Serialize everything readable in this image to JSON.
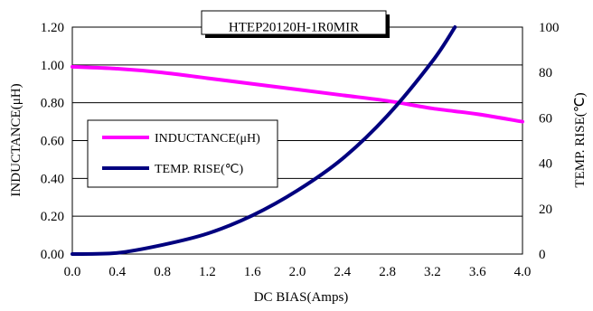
{
  "chart_data": {
    "type": "line",
    "title": "HTEP20120H-1R0MIR",
    "xlabel": "DC BIAS(Amps)",
    "ylabel": "INDUCTANCE(μH)",
    "y2label": "TEMP. RISE(℃)",
    "xlim": [
      0,
      4.0
    ],
    "ylim": [
      0,
      1.2
    ],
    "y2lim": [
      0,
      100
    ],
    "x_ticks": [
      "0.0",
      "0.4",
      "0.8",
      "1.2",
      "1.6",
      "2.0",
      "2.4",
      "2.8",
      "3.2",
      "3.6",
      "4.0"
    ],
    "y_ticks": [
      "0.00",
      "0.20",
      "0.40",
      "0.60",
      "0.80",
      "1.00",
      "1.20"
    ],
    "y2_ticks": [
      "0",
      "20",
      "40",
      "60",
      "80",
      "100"
    ],
    "grid": "horizontal",
    "legend_position": "left-middle",
    "series": [
      {
        "name": "INDUCTANCE(μH)",
        "axis": "left",
        "color": "#ff00ff",
        "x": [
          0.0,
          0.4,
          0.8,
          1.2,
          1.6,
          2.0,
          2.4,
          2.8,
          3.2,
          3.6,
          4.0
        ],
        "values": [
          0.99,
          0.98,
          0.96,
          0.93,
          0.9,
          0.87,
          0.84,
          0.81,
          0.77,
          0.74,
          0.7
        ]
      },
      {
        "name": "TEMP. RISE(℃)",
        "axis": "right",
        "color": "#00007f",
        "x": [
          0.0,
          0.4,
          0.8,
          1.2,
          1.6,
          2.0,
          2.4,
          2.8,
          3.2,
          3.4
        ],
        "values": [
          0,
          0.5,
          4,
          9,
          17,
          28,
          42,
          61,
          85,
          100
        ]
      }
    ]
  }
}
